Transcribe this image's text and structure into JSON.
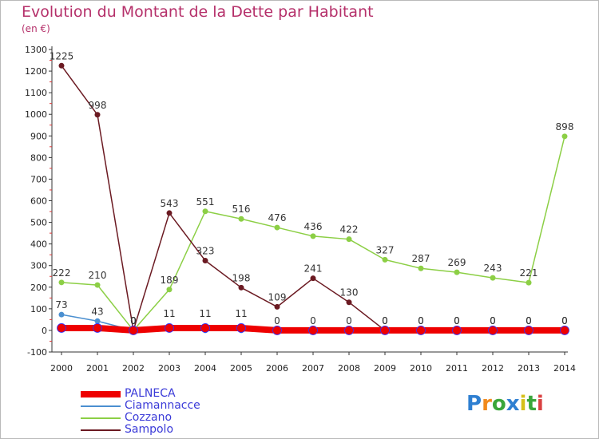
{
  "header": {
    "title": "Evolution du Montant de la Dette par Habitant",
    "subtitle": "(en €)"
  },
  "logo": {
    "letters": [
      "P",
      "r",
      "o",
      "x",
      "i",
      "t",
      "i"
    ],
    "colors": [
      "#2e7fd1",
      "#f18a1c",
      "#3aa63a",
      "#2e7fd1",
      "#d6c01a",
      "#3aa63a",
      "#d94141"
    ]
  },
  "chart_data": {
    "type": "line",
    "title": "Evolution du Montant de la Dette par Habitant",
    "ylabel": "(en €)",
    "xlabel": "",
    "categories": [
      "2000",
      "2001",
      "2002",
      "2003",
      "2004",
      "2005",
      "2006",
      "2007",
      "2008",
      "2009",
      "2010",
      "2011",
      "2012",
      "2013",
      "2014"
    ],
    "ylim": [
      -100,
      1300
    ],
    "yticks": [
      "-100",
      "0",
      "100",
      "200",
      "300",
      "400",
      "500",
      "600",
      "700",
      "800",
      "900",
      "1000",
      "1100",
      "1200",
      "1300"
    ],
    "grid": false,
    "legend": "bottom-left",
    "series": [
      {
        "name": "PALNECA",
        "color": "#ee0000",
        "values": [
          11,
          11,
          0,
          11,
          11,
          11,
          0,
          0,
          0,
          0,
          0,
          0,
          0,
          0,
          0
        ],
        "labels": [
          "",
          "",
          "0",
          "11",
          "11",
          "11",
          "0",
          "0",
          "0",
          "0",
          "0",
          "0",
          "0",
          "0",
          "0"
        ]
      },
      {
        "name": "Ciamannacce",
        "color": "#4a8fd0",
        "values": [
          73,
          43,
          0,
          11,
          0,
          0,
          0,
          0,
          0,
          0,
          0,
          0,
          0,
          0,
          0
        ],
        "labels": [
          "73",
          "43",
          "0",
          "",
          "",
          "",
          "",
          "",
          "",
          "",
          "",
          "",
          "",
          "",
          ""
        ]
      },
      {
        "name": "Cozzano",
        "color": "#8ccf45",
        "values": [
          222,
          210,
          0,
          189,
          551,
          516,
          476,
          436,
          422,
          327,
          287,
          269,
          243,
          221,
          898
        ],
        "labels": [
          "222",
          "210",
          "",
          "189",
          "551",
          "516",
          "476",
          "436",
          "422",
          "327",
          "287",
          "269",
          "243",
          "221",
          "898"
        ]
      },
      {
        "name": "Sampolo",
        "color": "#6b1a22",
        "values": [
          1225,
          998,
          0,
          543,
          323,
          198,
          109,
          241,
          130,
          0,
          0,
          0,
          0,
          0,
          0
        ],
        "labels": [
          "1225",
          "998",
          "0",
          "543",
          "323",
          "198",
          "109",
          "241",
          "130",
          "0",
          "0",
          "0",
          "0",
          "0",
          "0"
        ]
      }
    ]
  }
}
